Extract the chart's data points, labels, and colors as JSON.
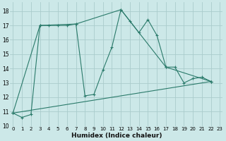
{
  "title": "",
  "xlabel": "Humidex (Indice chaleur)",
  "ylabel": "",
  "bg_color": "#cce8e8",
  "grid_color": "#aacccc",
  "line_color": "#2a7a6a",
  "series": [
    {
      "x": [
        0,
        1,
        2,
        3,
        4,
        5,
        6,
        7,
        8,
        9,
        10,
        11,
        12,
        13,
        14,
        15,
        16,
        17,
        18,
        19,
        20,
        21,
        22
      ],
      "y": [
        10.9,
        10.6,
        10.8,
        17.0,
        17.0,
        17.0,
        17.0,
        17.1,
        12.1,
        12.2,
        13.9,
        15.5,
        18.1,
        17.3,
        16.5,
        17.4,
        16.3,
        14.1,
        14.1,
        13.0,
        13.3,
        13.4,
        13.1
      ]
    },
    {
      "x": [
        0,
        22
      ],
      "y": [
        10.9,
        13.1
      ]
    },
    {
      "x": [
        0,
        3,
        7,
        12,
        17,
        22
      ],
      "y": [
        10.9,
        17.0,
        17.1,
        18.1,
        14.1,
        13.1
      ]
    }
  ],
  "xlim": [
    -0.3,
    23.3
  ],
  "ylim": [
    10.0,
    18.6
  ],
  "yticks": [
    10,
    11,
    12,
    13,
    14,
    15,
    16,
    17,
    18
  ],
  "xticks": [
    0,
    1,
    2,
    3,
    4,
    5,
    6,
    7,
    8,
    9,
    10,
    11,
    12,
    13,
    14,
    15,
    16,
    17,
    18,
    19,
    20,
    21,
    22,
    23
  ],
  "xtick_labels": [
    "0",
    "1",
    "2",
    "3",
    "4",
    "5",
    "6",
    "7",
    "8",
    "9",
    "10",
    "11",
    "12",
    "13",
    "14",
    "15",
    "16",
    "17",
    "18",
    "19",
    "20",
    "21",
    "22",
    "23"
  ],
  "tick_fontsize": 5.0,
  "xlabel_fontsize": 6.5
}
